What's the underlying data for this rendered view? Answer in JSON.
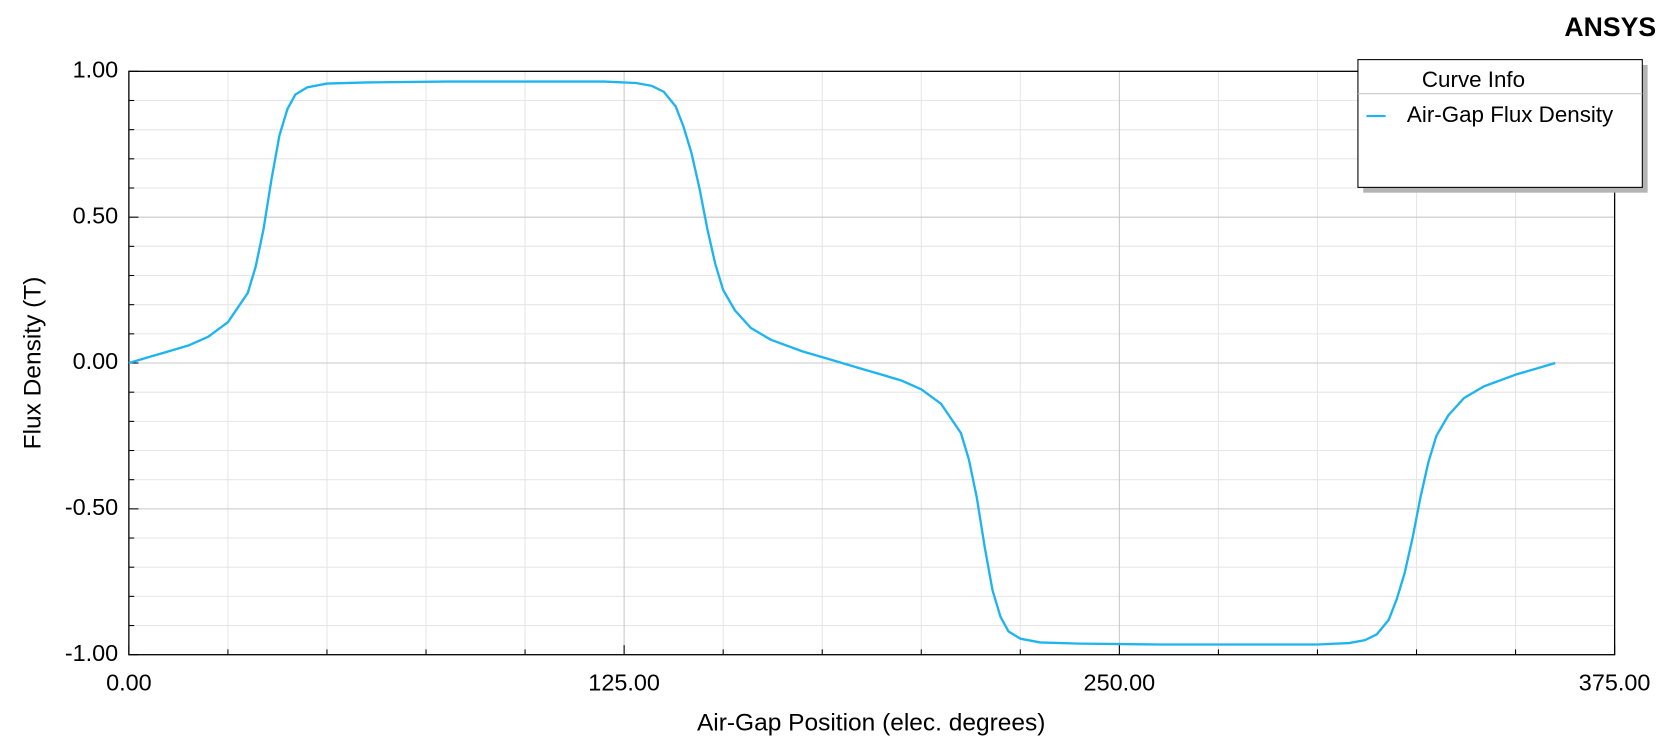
{
  "chart_data": {
    "type": "line",
    "brand": "ANSYS",
    "xlabel": "Air-Gap Position (elec. degrees)",
    "ylabel": "Flux Density (T)",
    "legend_title": "Curve Info",
    "legend": "top-right",
    "grid": true,
    "xlim": [
      0,
      375
    ],
    "ylim": [
      -1,
      1
    ],
    "xticks": [
      {
        "value": 0,
        "label": "0.00"
      },
      {
        "value": 125,
        "label": "125.00"
      },
      {
        "value": 250,
        "label": "250.00"
      },
      {
        "value": 375,
        "label": "375.00"
      }
    ],
    "yticks": [
      {
        "value": -1,
        "label": "-1.00"
      },
      {
        "value": -0.5,
        "label": "-0.50"
      },
      {
        "value": 0,
        "label": "0.00"
      },
      {
        "value": 0.5,
        "label": "0.50"
      },
      {
        "value": 1,
        "label": "1.00"
      }
    ],
    "x": [
      0,
      5,
      10,
      15,
      20,
      25,
      30,
      32,
      34,
      36,
      38,
      40,
      42,
      45,
      50,
      60,
      80,
      100,
      120,
      128,
      132,
      135,
      138,
      140,
      142,
      144,
      146,
      148,
      150,
      153,
      157,
      162,
      170,
      175,
      180,
      185,
      190,
      195,
      200,
      205,
      210,
      212,
      214,
      216,
      218,
      220,
      222,
      225,
      230,
      240,
      260,
      280,
      300,
      308,
      312,
      315,
      318,
      320,
      322,
      324,
      326,
      328,
      330,
      333,
      337,
      342,
      350,
      355,
      360
    ],
    "series": [
      {
        "name": "Air-Gap Flux Density",
        "color": "#1eb4f0",
        "values": [
          0,
          0.02,
          0.04,
          0.06,
          0.09,
          0.14,
          0.24,
          0.33,
          0.46,
          0.63,
          0.78,
          0.87,
          0.92,
          0.945,
          0.958,
          0.962,
          0.965,
          0.965,
          0.965,
          0.96,
          0.95,
          0.93,
          0.88,
          0.81,
          0.72,
          0.6,
          0.46,
          0.34,
          0.25,
          0.18,
          0.12,
          0.08,
          0.04,
          0.02,
          0,
          -0.02,
          -0.04,
          -0.06,
          -0.09,
          -0.14,
          -0.24,
          -0.33,
          -0.46,
          -0.63,
          -0.78,
          -0.87,
          -0.92,
          -0.945,
          -0.958,
          -0.962,
          -0.965,
          -0.965,
          -0.965,
          -0.96,
          -0.95,
          -0.93,
          -0.88,
          -0.81,
          -0.72,
          -0.6,
          -0.46,
          -0.34,
          -0.25,
          -0.18,
          -0.12,
          -0.08,
          -0.04,
          -0.02,
          0
        ]
      }
    ]
  }
}
